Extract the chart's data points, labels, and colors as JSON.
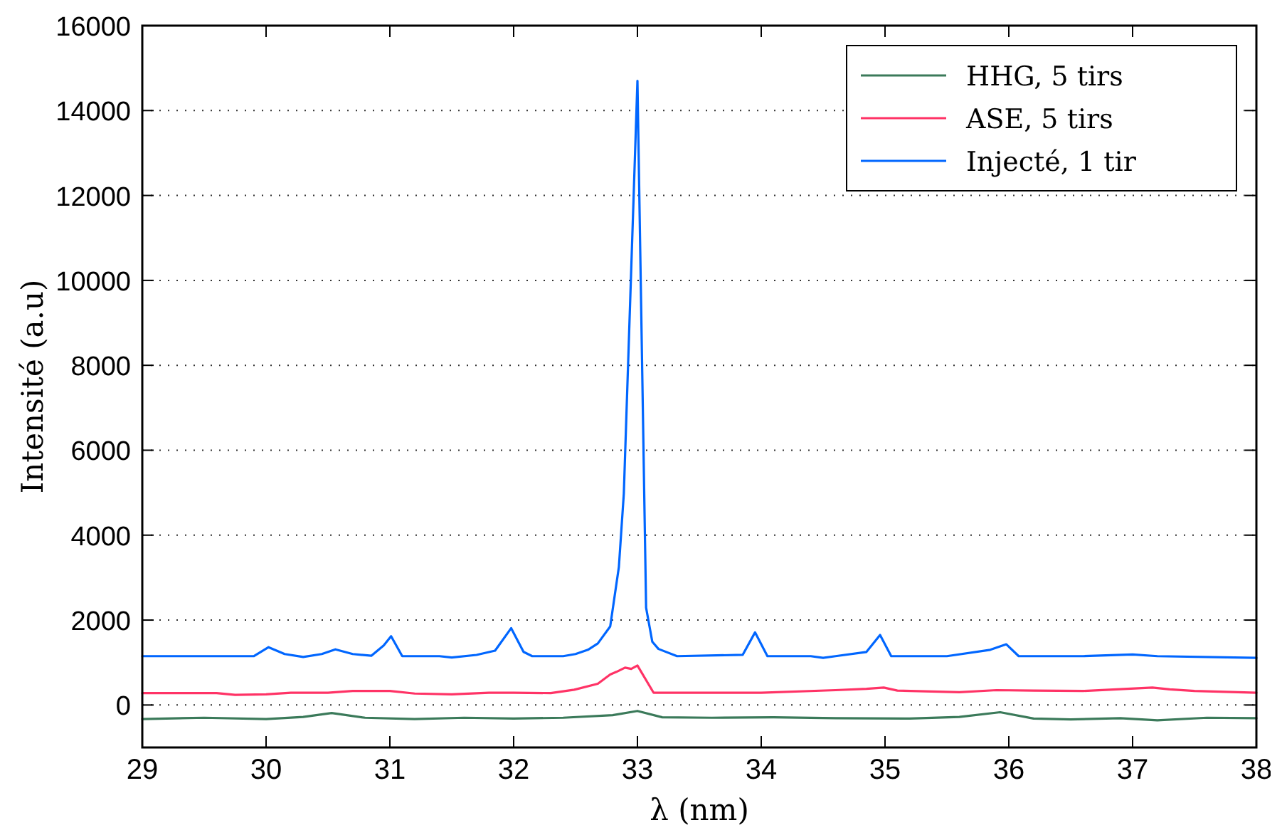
{
  "chart_data": {
    "type": "line",
    "xlabel": "λ (nm)",
    "ylabel": "Intensité (a.u)",
    "xlim": [
      29,
      38
    ],
    "xticks": [
      29,
      30,
      31,
      32,
      33,
      34,
      35,
      36,
      37,
      38
    ],
    "ylim": [
      -1000,
      16000
    ],
    "yticks": [
      0,
      2000,
      4000,
      6000,
      8000,
      10000,
      12000,
      14000,
      16000
    ],
    "grid": "y",
    "legend": "top right",
    "marker": "none",
    "line_style": "solid",
    "series": [
      {
        "name": "HHG, 5 tirs",
        "color": "#3b7a5a",
        "x": [
          29,
          29.5,
          30,
          30.3,
          30.53,
          30.8,
          31.2,
          31.6,
          32,
          32.4,
          32.8,
          33,
          33.2,
          33.6,
          34.1,
          34.6,
          35.2,
          35.6,
          35.93,
          36.2,
          36.5,
          36.9,
          37.2,
          37.6,
          38
        ],
        "values": [
          -330,
          -300,
          -330,
          -280,
          -190,
          -300,
          -330,
          -300,
          -320,
          -300,
          -240,
          -140,
          -290,
          -300,
          -290,
          -310,
          -320,
          -280,
          -170,
          -320,
          -340,
          -310,
          -360,
          -300,
          -310
        ]
      },
      {
        "name": "ASE, 5 tirs",
        "color": "#ff3366",
        "x": [
          29,
          29.6,
          29.75,
          30,
          30.2,
          30.5,
          30.7,
          31,
          31.2,
          31.5,
          31.8,
          32,
          32.3,
          32.49,
          32.68,
          32.78,
          32.83,
          32.9,
          32.95,
          33,
          33.13,
          33.5,
          34,
          34.6,
          34.85,
          34.99,
          35.1,
          35.6,
          35.9,
          36.2,
          36.6,
          37.16,
          37.3,
          37.5,
          38
        ],
        "values": [
          280,
          280,
          240,
          250,
          290,
          290,
          330,
          330,
          270,
          250,
          290,
          290,
          280,
          360,
          500,
          720,
          780,
          880,
          850,
          930,
          290,
          290,
          290,
          350,
          380,
          410,
          340,
          300,
          350,
          340,
          330,
          410,
          370,
          330,
          290
        ]
      },
      {
        "name": "Injecté, 1 tir",
        "color": "#0066ff",
        "x": [
          29,
          29.9,
          30.02,
          30.15,
          30.3,
          30.45,
          30.56,
          30.7,
          30.85,
          30.95,
          31.01,
          31.1,
          31.4,
          31.5,
          31.7,
          31.85,
          31.98,
          32.08,
          32.15,
          32.4,
          32.5,
          32.6,
          32.68,
          32.78,
          32.85,
          32.89,
          33,
          33.07,
          33.12,
          33.17,
          33.32,
          33.85,
          33.95,
          34.05,
          34.4,
          34.5,
          34.6,
          34.85,
          34.96,
          35.05,
          35.5,
          35.85,
          35.98,
          36.08,
          36.6,
          37,
          37.2,
          38
        ],
        "values": [
          1150,
          1150,
          1360,
          1200,
          1130,
          1200,
          1310,
          1200,
          1160,
          1400,
          1620,
          1150,
          1150,
          1120,
          1180,
          1280,
          1810,
          1250,
          1150,
          1150,
          1200,
          1300,
          1450,
          1850,
          3250,
          4980,
          14700,
          2290,
          1490,
          1320,
          1150,
          1180,
          1710,
          1150,
          1150,
          1110,
          1150,
          1250,
          1650,
          1150,
          1150,
          1300,
          1430,
          1150,
          1150,
          1190,
          1150,
          1110
        ]
      }
    ]
  }
}
